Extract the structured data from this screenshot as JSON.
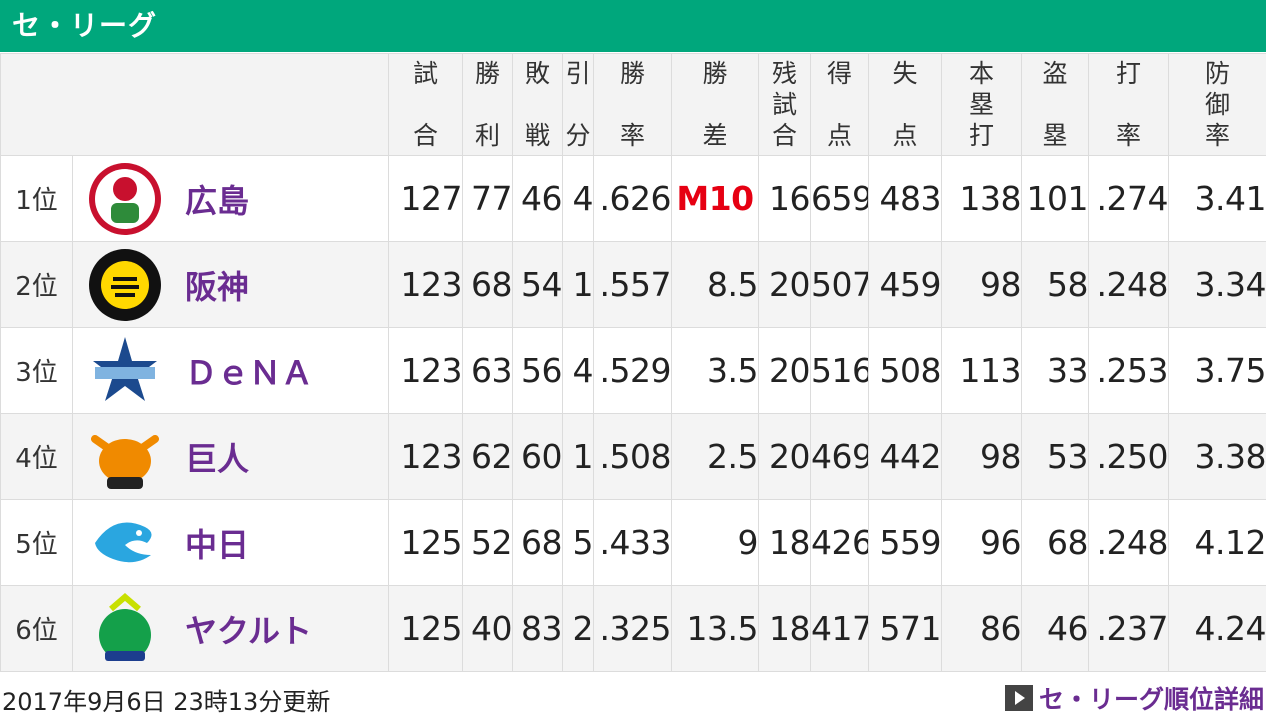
{
  "header": {
    "title": "セ・リーグ"
  },
  "columns": [
    {
      "top": "試",
      "bottom": "合"
    },
    {
      "top": "勝",
      "bottom": "利"
    },
    {
      "top": "敗",
      "bottom": "戦"
    },
    {
      "top": "引",
      "bottom": "分"
    },
    {
      "top": "勝",
      "bottom": "率"
    },
    {
      "top": "勝",
      "bottom": "差"
    },
    {
      "lines": [
        "残",
        "試",
        "合"
      ]
    },
    {
      "top": "得",
      "bottom": "点"
    },
    {
      "top": "失",
      "bottom": "点"
    },
    {
      "lines": [
        "本",
        "塁",
        "打"
      ]
    },
    {
      "top": "盗",
      "bottom": "塁"
    },
    {
      "top": "打",
      "bottom": "率"
    },
    {
      "lines": [
        "防",
        "御",
        "率"
      ]
    }
  ],
  "teams": [
    {
      "rank": "1位",
      "name": "広島",
      "logo": "carp-logo",
      "color": "#e60012",
      "stats": [
        "127",
        "77",
        "46",
        "4",
        ".626",
        "M10",
        "16",
        "659",
        "483",
        "138",
        "101",
        ".274",
        "3.41"
      ]
    },
    {
      "rank": "2位",
      "name": "阪神",
      "logo": "tigers-logo",
      "color": "#ffd800",
      "stats": [
        "123",
        "68",
        "54",
        "1",
        ".557",
        "8.5",
        "20",
        "507",
        "459",
        "98",
        "58",
        ".248",
        "3.34"
      ]
    },
    {
      "rank": "3位",
      "name": "ＤｅＮＡ",
      "logo": "baystars-logo",
      "color": "#1c4a8e",
      "stats": [
        "123",
        "63",
        "56",
        "4",
        ".529",
        "3.5",
        "20",
        "516",
        "508",
        "113",
        "33",
        ".253",
        "3.75"
      ]
    },
    {
      "rank": "4位",
      "name": "巨人",
      "logo": "giants-logo",
      "color": "#f08a00",
      "stats": [
        "123",
        "62",
        "60",
        "1",
        ".508",
        "2.5",
        "20",
        "469",
        "442",
        "98",
        "53",
        ".250",
        "3.38"
      ]
    },
    {
      "rank": "5位",
      "name": "中日",
      "logo": "dragons-logo",
      "color": "#2aa6e0",
      "stats": [
        "125",
        "52",
        "68",
        "5",
        ".433",
        "9",
        "18",
        "426",
        "559",
        "96",
        "68",
        ".248",
        "4.12"
      ]
    },
    {
      "rank": "6位",
      "name": "ヤクルト",
      "logo": "swallows-logo",
      "color": "#14a04a",
      "stats": [
        "125",
        "40",
        "83",
        "2",
        ".325",
        "13.5",
        "18",
        "417",
        "571",
        "86",
        "46",
        ".237",
        "4.24"
      ]
    }
  ],
  "footer": {
    "updated": "2017年9月6日 23時13分更新",
    "link_label": "セ・リーグ順位詳細"
  },
  "colors": {
    "accent": "#00a77c",
    "team_name": "#6a2c91",
    "magic": "#e60012"
  }
}
